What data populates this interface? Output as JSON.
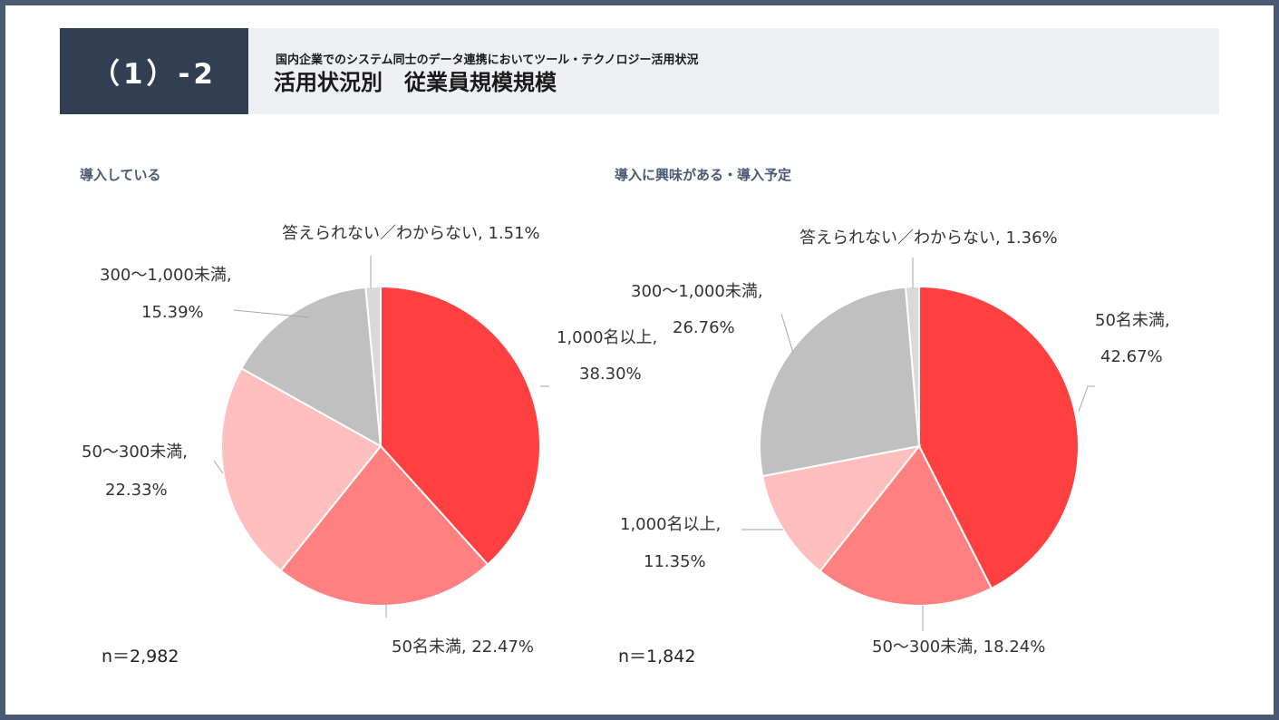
{
  "header": {
    "number": "（1）-2",
    "subtitle": "国内企業でのシステム同士のデータ連携においてツール・テクノロジー活用状況",
    "title": "活用状況別　従業員規模規模"
  },
  "colors": {
    "50名未満": "#ff4040",
    "50〜300未満": "#ff8080",
    "300〜1,000未満": "#ffbfbf",
    "1,000名以上": "#c0c0c0",
    "答えられない／わからない": "#d9d9d9"
  },
  "chart_data": [
    {
      "type": "pie",
      "title": "導入している",
      "n_label": "n＝2,982",
      "slices": [
        {
          "line1": "1,000名以上,",
          "line2": "38.30%",
          "value": 38.3
        },
        {
          "line1": "50名未満, 22.47%",
          "line2": "",
          "value": 22.47
        },
        {
          "line1": "50〜300未満,",
          "line2": "22.33%",
          "value": 22.33
        },
        {
          "line1": "300〜1,000未満,",
          "line2": "15.39%",
          "value": 15.39
        },
        {
          "line1": "答えられない／わからない, 1.51%",
          "line2": "",
          "value": 1.51
        }
      ]
    },
    {
      "type": "pie",
      "title": "導入に興味がある・導入予定",
      "n_label": "n＝1,842",
      "slices": [
        {
          "line1": "50名未満,",
          "line2": "42.67%",
          "value": 42.67
        },
        {
          "line1": "50〜300未満, 18.24%",
          "line2": "",
          "value": 18.24
        },
        {
          "line1": "1,000名以上,",
          "line2": "11.35%",
          "value": 11.35
        },
        {
          "line1": "300〜1,000未満,",
          "line2": "26.76%",
          "value": 26.76
        },
        {
          "line1": "答えられない／わからない, 1.36%",
          "line2": "",
          "value": 1.36
        }
      ]
    }
  ]
}
